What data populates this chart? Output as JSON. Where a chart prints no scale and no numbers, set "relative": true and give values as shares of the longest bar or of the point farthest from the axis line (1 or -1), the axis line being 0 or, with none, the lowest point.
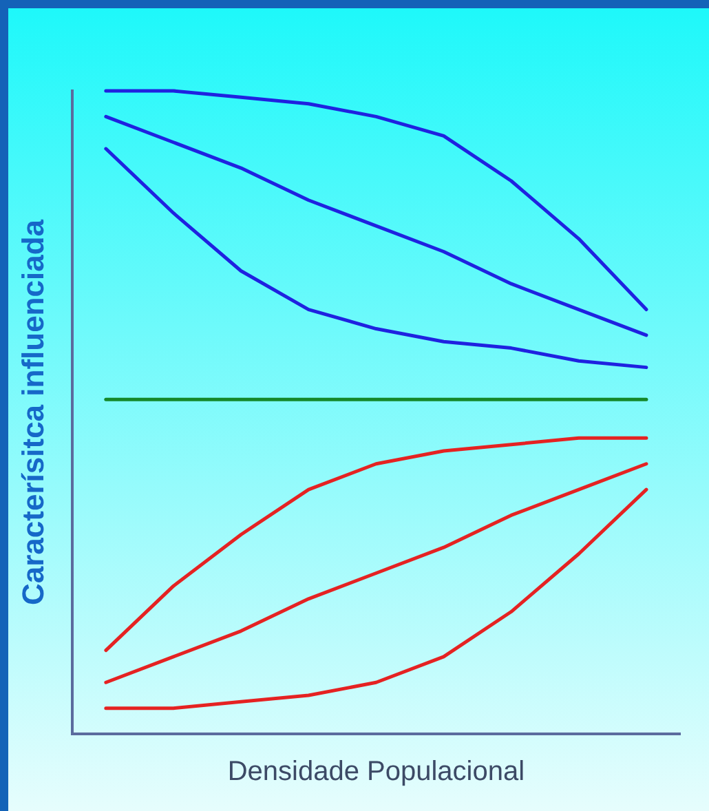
{
  "chart_data": {
    "type": "line",
    "relative": true,
    "xlabel": "Densidade Populacional",
    "ylabel": "Caracterísitca influenciada",
    "categories": [
      null,
      null,
      null,
      null,
      null,
      null,
      null,
      null,
      null
    ],
    "marker": "none",
    "line_style": "solid",
    "grid": false,
    "legend": false,
    "series": [
      {
        "color": "#1f22e0",
        "values": [
          1,
          1.0,
          0.99,
          0.98,
          0.96,
          0.93,
          0.86,
          0.77,
          0.66
        ]
      },
      {
        "color": "#1f22e0",
        "values": [
          0.96,
          0.92,
          0.88,
          0.83,
          0.79,
          0.75,
          0.7,
          0.66,
          0.62
        ]
      },
      {
        "color": "#1f22e0",
        "values": [
          0.91,
          0.81,
          0.72,
          0.66,
          0.63,
          0.61,
          0.6,
          0.58,
          0.57
        ]
      },
      {
        "color": "#15882a",
        "values": [
          0.52,
          0.52,
          0.52,
          0.52,
          0.52,
          0.52,
          0.52,
          0.52,
          0.52
        ]
      },
      {
        "color": "#e52222",
        "values": [
          0.13,
          0.23,
          0.31,
          0.38,
          0.42,
          0.44,
          0.45,
          0.46,
          0.46
        ]
      },
      {
        "color": "#e52222",
        "values": [
          0.08,
          0.12,
          0.16,
          0.21,
          0.25,
          0.29,
          0.34,
          0.38,
          0.42
        ]
      },
      {
        "color": "#e52222",
        "values": [
          0.04,
          0.04,
          0.05,
          0.06,
          0.08,
          0.12,
          0.19,
          0.28,
          0.38
        ]
      }
    ]
  }
}
